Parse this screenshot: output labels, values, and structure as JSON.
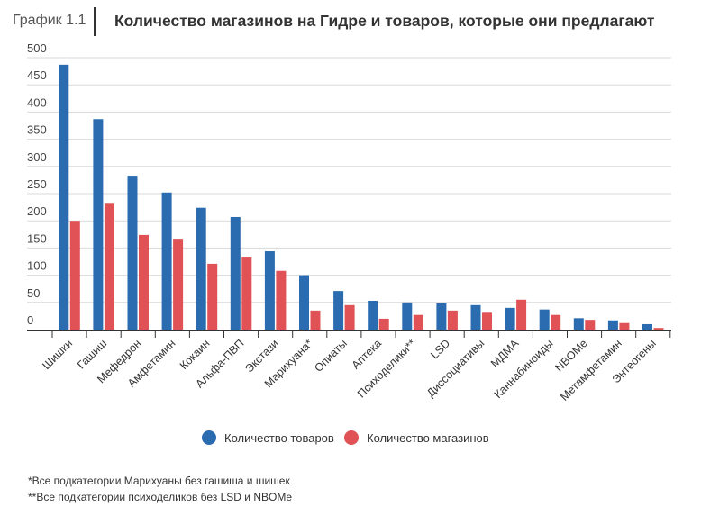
{
  "header": {
    "chart_number": "График 1.1",
    "title": "Количество магазинов на Гидре и товаров, которые они предлагают"
  },
  "chart_data": {
    "type": "bar",
    "title": "Количество магазинов на Гидре и товаров, которые они предлагают",
    "xlabel": "",
    "ylabel": "",
    "ylim": [
      0,
      500
    ],
    "yticks": [
      0,
      50,
      100,
      150,
      200,
      250,
      300,
      350,
      400,
      450,
      500
    ],
    "grid": true,
    "legend_position": "bottom",
    "categories": [
      "Шишки",
      "Гашиш",
      "Мефедрон",
      "Амфетамин",
      "Кокаин",
      "Альфа-ПВП",
      "Экстази",
      "Марихуана*",
      "Опиаты",
      "Аптека",
      "Психоделики**",
      "LSD",
      "Диссоциативы",
      "МДМА",
      "Каннабиноиды",
      "NBOMe",
      "Метамфетамин",
      "Энтеогены"
    ],
    "series": [
      {
        "name": "Количество товаров",
        "color": "#2b6cb0",
        "values": [
          487,
          387,
          283,
          252,
          224,
          207,
          144,
          100,
          71,
          53,
          50,
          48,
          45,
          40,
          37,
          21,
          17,
          10
        ]
      },
      {
        "name": "Количество магазинов",
        "color": "#e05256",
        "values": [
          200,
          233,
          174,
          167,
          121,
          134,
          108,
          35,
          45,
          20,
          27,
          35,
          31,
          55,
          27,
          18,
          12,
          3
        ]
      }
    ]
  },
  "footnotes": [
    "*Все подкатегории Марихуаны без гашиша и шишек",
    "**Все подкатегории психоделиков без LSD и NBOMe"
  ]
}
